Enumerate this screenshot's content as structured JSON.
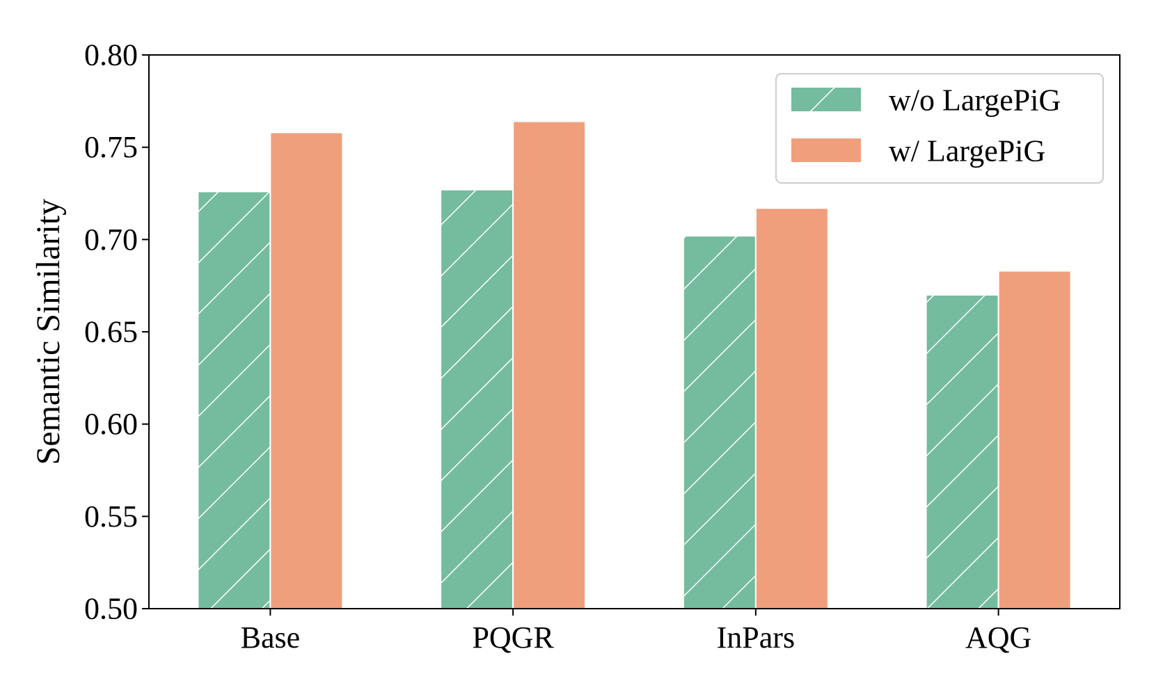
{
  "chart_data": {
    "type": "bar",
    "title": "",
    "xlabel": "",
    "ylabel": "Semantic Similarity",
    "categories": [
      "Base",
      "PQGR",
      "InPars",
      "AQG"
    ],
    "ylim": [
      0.5,
      0.8
    ],
    "yticks": [
      "0.50",
      "0.55",
      "0.60",
      "0.65",
      "0.70",
      "0.75",
      "0.80"
    ],
    "grid": false,
    "legend_position": "top-right",
    "series": [
      {
        "name": "w/o LargePiG",
        "values": [
          0.726,
          0.727,
          0.702,
          0.67
        ],
        "color": "#75bc9e",
        "pattern": "hatch"
      },
      {
        "name": "w/ LargePiG",
        "values": [
          0.758,
          0.764,
          0.717,
          0.683
        ],
        "color": "#f09f7d",
        "pattern": "solid"
      }
    ]
  }
}
